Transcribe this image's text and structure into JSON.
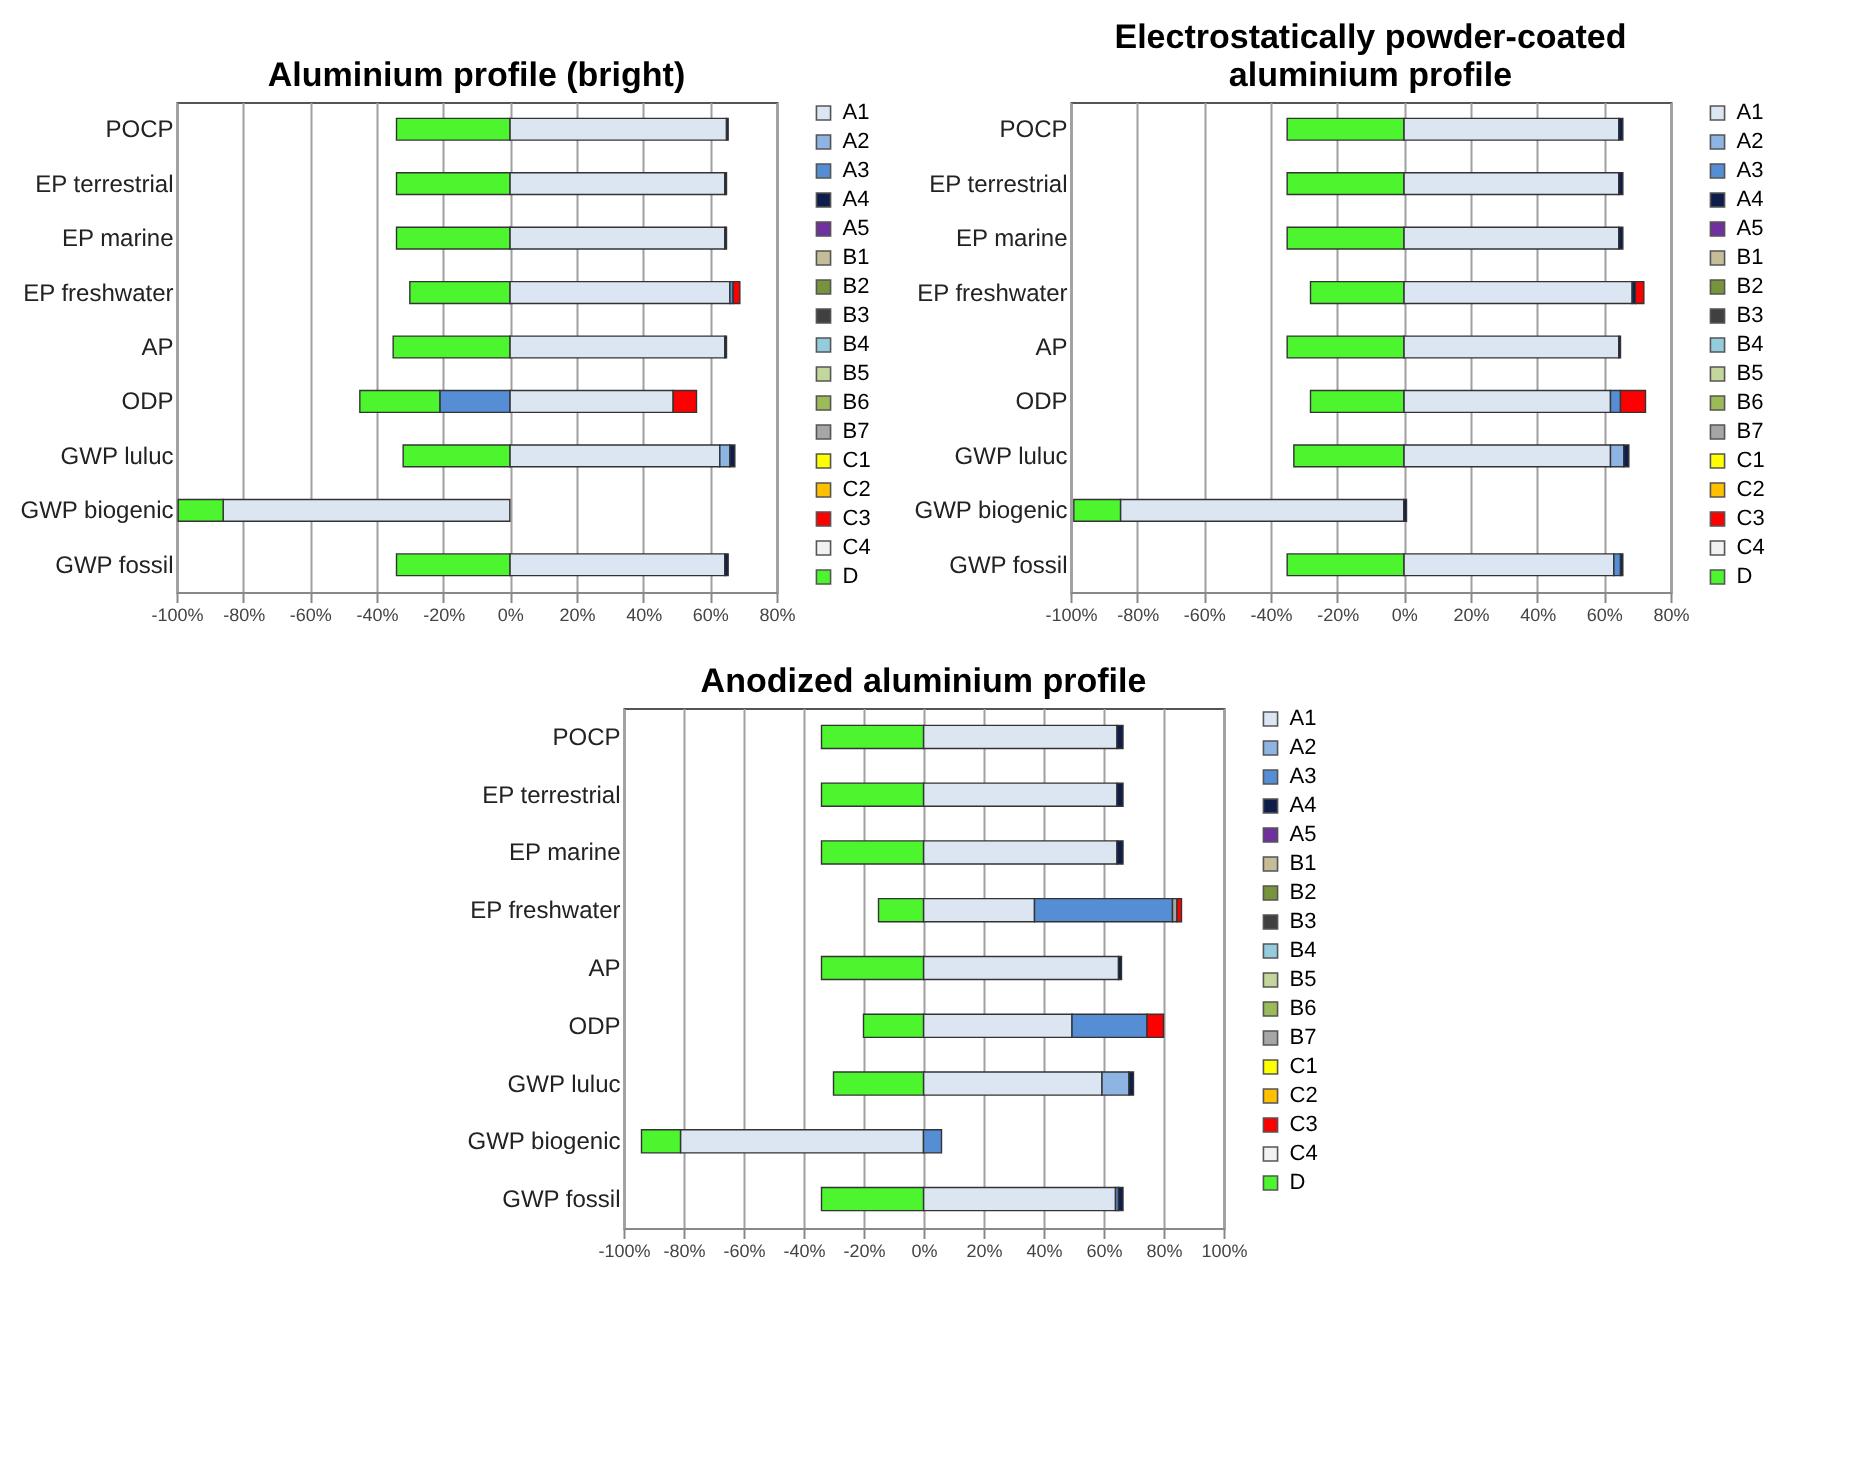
{
  "chart_data": [
    {
      "type": "bar",
      "title": "Aluminium profile (bright)",
      "orientation": "horizontal",
      "stacked": true,
      "grid": "x",
      "legend": "right",
      "categories": [
        "POCP",
        "EP terrestrial",
        "EP marine",
        "EP freshwater",
        "AP",
        "ODP",
        "GWP luluc",
        "GWP biogenic",
        "GWP fossil"
      ],
      "xlim": [
        -100,
        80
      ],
      "xticks": [
        {
          "value": -100,
          "label": "-100%"
        },
        {
          "value": -80,
          "label": "-80%"
        },
        {
          "value": -60,
          "label": "-60%"
        },
        {
          "value": -40,
          "label": "-40%"
        },
        {
          "value": -20,
          "label": "-20%"
        },
        {
          "value": 0,
          "label": "0%"
        },
        {
          "value": 20,
          "label": "20%"
        },
        {
          "value": 40,
          "label": "40%"
        },
        {
          "value": 60,
          "label": "60%"
        },
        {
          "value": 80,
          "label": "80%"
        }
      ],
      "series": [
        {
          "name": "A1",
          "color": "#dce6f2",
          "values": [
            65,
            64.5,
            64.5,
            66,
            64.5,
            49,
            63,
            -86,
            64.5
          ]
        },
        {
          "name": "A2",
          "color": "#8eb4e3",
          "values": [
            null,
            null,
            null,
            null,
            null,
            null,
            3,
            null,
            null
          ]
        },
        {
          "name": "A3",
          "color": "#558ed5",
          "values": [
            null,
            null,
            null,
            1,
            null,
            -21,
            null,
            null,
            null
          ]
        },
        {
          "name": "A4",
          "color": "#0e1d4a",
          "values": [
            0.5,
            0.5,
            0.5,
            null,
            0.5,
            null,
            1.5,
            null,
            1
          ]
        },
        {
          "name": "A5",
          "color": "#7030a0",
          "values": [
            null,
            null,
            null,
            null,
            null,
            null,
            null,
            null,
            null
          ]
        },
        {
          "name": "B1",
          "color": "#c4bd97",
          "values": [
            null,
            null,
            null,
            null,
            null,
            null,
            null,
            null,
            null
          ]
        },
        {
          "name": "B2",
          "color": "#77933c",
          "values": [
            null,
            null,
            null,
            null,
            null,
            null,
            null,
            null,
            null
          ]
        },
        {
          "name": "B3",
          "color": "#404040",
          "values": [
            null,
            null,
            null,
            null,
            null,
            null,
            null,
            null,
            null
          ]
        },
        {
          "name": "B4",
          "color": "#93cddd",
          "values": [
            null,
            null,
            null,
            null,
            null,
            null,
            null,
            null,
            null
          ]
        },
        {
          "name": "B5",
          "color": "#c3d69b",
          "values": [
            null,
            null,
            null,
            null,
            null,
            null,
            null,
            null,
            null
          ]
        },
        {
          "name": "B6",
          "color": "#9bbb59",
          "values": [
            null,
            null,
            null,
            null,
            null,
            null,
            null,
            null,
            null
          ]
        },
        {
          "name": "B7",
          "color": "#a6a6a6",
          "values": [
            null,
            null,
            null,
            null,
            null,
            null,
            null,
            null,
            null
          ]
        },
        {
          "name": "C1",
          "color": "#ffff00",
          "values": [
            null,
            null,
            null,
            null,
            null,
            null,
            null,
            null,
            null
          ]
        },
        {
          "name": "C2",
          "color": "#ffc000",
          "values": [
            null,
            null,
            null,
            null,
            null,
            null,
            null,
            null,
            null
          ]
        },
        {
          "name": "C3",
          "color": "#ff0000",
          "values": [
            null,
            null,
            null,
            2,
            null,
            7,
            null,
            null,
            null
          ]
        },
        {
          "name": "C4",
          "color": "#f2f2f2",
          "values": [
            null,
            null,
            null,
            null,
            null,
            null,
            null,
            null,
            null
          ]
        },
        {
          "name": "D",
          "color": "#4cf52e",
          "values": [
            -34,
            -34,
            -34,
            -30,
            -35,
            -24,
            -32,
            -13.5,
            -34
          ]
        }
      ]
    },
    {
      "type": "bar",
      "title": "Electrostatically powder-coated\naluminium profile",
      "orientation": "horizontal",
      "stacked": true,
      "grid": "x",
      "legend": "right",
      "categories": [
        "POCP",
        "EP terrestrial",
        "EP marine",
        "EP freshwater",
        "AP",
        "ODP",
        "GWP luluc",
        "GWP biogenic",
        "GWP fossil"
      ],
      "xlim": [
        -100,
        80
      ],
      "xticks": [
        {
          "value": -100,
          "label": "-100%"
        },
        {
          "value": -80,
          "label": "-80%"
        },
        {
          "value": -60,
          "label": "-60%"
        },
        {
          "value": -40,
          "label": "-40%"
        },
        {
          "value": -20,
          "label": "-20%"
        },
        {
          "value": 0,
          "label": "0%"
        },
        {
          "value": 20,
          "label": "20%"
        },
        {
          "value": 40,
          "label": "40%"
        },
        {
          "value": 60,
          "label": "60%"
        },
        {
          "value": 80,
          "label": "80%"
        }
      ],
      "series": [
        {
          "name": "A1",
          "color": "#dce6f2",
          "values": [
            64.5,
            64.5,
            64.5,
            68.5,
            64.5,
            62,
            62,
            -85,
            63
          ]
        },
        {
          "name": "A2",
          "color": "#8eb4e3",
          "values": [
            null,
            null,
            null,
            null,
            null,
            null,
            4,
            null,
            null
          ]
        },
        {
          "name": "A3",
          "color": "#558ed5",
          "values": [
            null,
            null,
            null,
            null,
            null,
            3,
            null,
            null,
            2
          ]
        },
        {
          "name": "A4",
          "color": "#0e1d4a",
          "values": [
            1.2,
            1.2,
            1.2,
            1,
            0.5,
            null,
            1.5,
            0.8,
            0.7
          ]
        },
        {
          "name": "A5",
          "color": "#7030a0",
          "values": [
            null,
            null,
            null,
            null,
            null,
            null,
            null,
            null,
            null
          ]
        },
        {
          "name": "B1",
          "color": "#c4bd97",
          "values": [
            null,
            null,
            null,
            null,
            null,
            null,
            null,
            null,
            null
          ]
        },
        {
          "name": "B2",
          "color": "#77933c",
          "values": [
            null,
            null,
            null,
            null,
            null,
            null,
            null,
            null,
            null
          ]
        },
        {
          "name": "B3",
          "color": "#404040",
          "values": [
            null,
            null,
            null,
            null,
            null,
            null,
            null,
            null,
            null
          ]
        },
        {
          "name": "B4",
          "color": "#93cddd",
          "values": [
            null,
            null,
            null,
            null,
            null,
            null,
            null,
            null,
            null
          ]
        },
        {
          "name": "B5",
          "color": "#c3d69b",
          "values": [
            null,
            null,
            null,
            null,
            null,
            null,
            null,
            null,
            null
          ]
        },
        {
          "name": "B6",
          "color": "#9bbb59",
          "values": [
            null,
            null,
            null,
            null,
            null,
            null,
            null,
            null,
            null
          ]
        },
        {
          "name": "B7",
          "color": "#a6a6a6",
          "values": [
            null,
            null,
            null,
            null,
            null,
            null,
            null,
            null,
            null
          ]
        },
        {
          "name": "C1",
          "color": "#ffff00",
          "values": [
            null,
            null,
            null,
            null,
            null,
            null,
            null,
            null,
            null
          ]
        },
        {
          "name": "C2",
          "color": "#ffc000",
          "values": [
            null,
            null,
            null,
            null,
            null,
            null,
            null,
            null,
            null
          ]
        },
        {
          "name": "C3",
          "color": "#ff0000",
          "values": [
            null,
            null,
            null,
            2.5,
            null,
            7.5,
            null,
            null,
            null
          ]
        },
        {
          "name": "C4",
          "color": "#f2f2f2",
          "values": [
            null,
            null,
            null,
            null,
            null,
            null,
            null,
            null,
            null
          ]
        },
        {
          "name": "D",
          "color": "#4cf52e",
          "values": [
            -35,
            -35,
            -35,
            -28,
            -35,
            -28,
            -33,
            -14,
            -35
          ]
        }
      ]
    },
    {
      "type": "bar",
      "title": "Anodized aluminium profile",
      "orientation": "horizontal",
      "stacked": true,
      "grid": "x",
      "legend": "right",
      "categories": [
        "POCP",
        "EP terrestrial",
        "EP marine",
        "EP freshwater",
        "AP",
        "ODP",
        "GWP luluc",
        "GWP biogenic",
        "GWP fossil"
      ],
      "xlim": [
        -100,
        100
      ],
      "xticks": [
        {
          "value": -100,
          "label": "-100%"
        },
        {
          "value": -80,
          "label": "-80%"
        },
        {
          "value": -60,
          "label": "-60%"
        },
        {
          "value": -40,
          "label": "-40%"
        },
        {
          "value": -20,
          "label": "-20%"
        },
        {
          "value": 0,
          "label": "0%"
        },
        {
          "value": 20,
          "label": "20%"
        },
        {
          "value": 40,
          "label": "40%"
        },
        {
          "value": 60,
          "label": "60%"
        },
        {
          "value": 80,
          "label": "80%"
        },
        {
          "value": 100,
          "label": "100%"
        }
      ],
      "series": [
        {
          "name": "A1",
          "color": "#dce6f2",
          "values": [
            64.5,
            64.5,
            64.5,
            37,
            65,
            49.5,
            59.5,
            -81,
            64
          ]
        },
        {
          "name": "A2",
          "color": "#8eb4e3",
          "values": [
            null,
            null,
            null,
            null,
            null,
            null,
            9,
            null,
            null
          ]
        },
        {
          "name": "A3",
          "color": "#558ed5",
          "values": [
            null,
            null,
            null,
            46,
            null,
            25,
            null,
            6,
            1
          ]
        },
        {
          "name": "A4",
          "color": "#0e1d4a",
          "values": [
            2,
            2,
            2,
            null,
            1,
            null,
            1.5,
            null,
            1.5
          ]
        },
        {
          "name": "A5",
          "color": "#7030a0",
          "values": [
            null,
            null,
            null,
            null,
            null,
            null,
            null,
            null,
            null
          ]
        },
        {
          "name": "B1",
          "color": "#c4bd97",
          "values": [
            null,
            null,
            null,
            null,
            null,
            null,
            null,
            null,
            null
          ]
        },
        {
          "name": "B2",
          "color": "#77933c",
          "values": [
            null,
            null,
            null,
            null,
            null,
            null,
            null,
            null,
            null
          ]
        },
        {
          "name": "B3",
          "color": "#404040",
          "values": [
            null,
            null,
            null,
            null,
            null,
            null,
            null,
            null,
            null
          ]
        },
        {
          "name": "B4",
          "color": "#93cddd",
          "values": [
            null,
            null,
            null,
            null,
            null,
            null,
            null,
            null,
            null
          ]
        },
        {
          "name": "B5",
          "color": "#c3d69b",
          "values": [
            null,
            null,
            null,
            null,
            null,
            null,
            null,
            null,
            null
          ]
        },
        {
          "name": "B6",
          "color": "#9bbb59",
          "values": [
            null,
            null,
            null,
            null,
            null,
            null,
            null,
            null,
            null
          ]
        },
        {
          "name": "B7",
          "color": "#a6a6a6",
          "values": [
            null,
            null,
            null,
            1.5,
            null,
            null,
            null,
            null,
            null
          ]
        },
        {
          "name": "C1",
          "color": "#ffff00",
          "values": [
            null,
            null,
            null,
            null,
            null,
            null,
            null,
            null,
            null
          ]
        },
        {
          "name": "C2",
          "color": "#ffc000",
          "values": [
            null,
            null,
            null,
            null,
            null,
            null,
            null,
            null,
            null
          ]
        },
        {
          "name": "C3",
          "color": "#ff0000",
          "values": [
            null,
            null,
            null,
            1.5,
            null,
            5.5,
            null,
            null,
            null
          ]
        },
        {
          "name": "C4",
          "color": "#f2f2f2",
          "values": [
            null,
            null,
            null,
            null,
            null,
            null,
            null,
            null,
            null
          ]
        },
        {
          "name": "D",
          "color": "#4cf52e",
          "values": [
            -34,
            -34,
            -34,
            -15,
            -34,
            -20,
            -30,
            -13,
            -34
          ]
        }
      ]
    }
  ]
}
